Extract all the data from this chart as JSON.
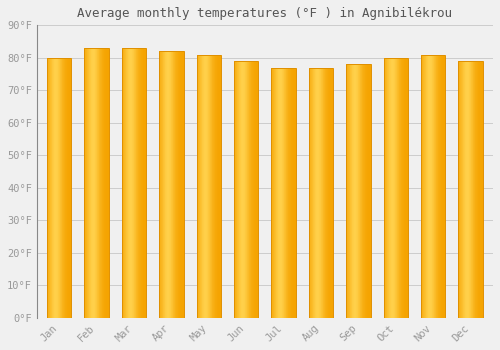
{
  "title": "Average monthly temperatures (°F ) in Agnibilékrou",
  "months": [
    "Jan",
    "Feb",
    "Mar",
    "Apr",
    "May",
    "Jun",
    "Jul",
    "Aug",
    "Sep",
    "Oct",
    "Nov",
    "Dec"
  ],
  "values": [
    80,
    83,
    83,
    82,
    81,
    79,
    77,
    77,
    78,
    80,
    81,
    79
  ],
  "bar_color_center": "#FFD04A",
  "bar_color_edge": "#F5A300",
  "bar_edge_color": "#E09000",
  "background_color": "#F0F0F0",
  "grid_color": "#CCCCCC",
  "text_color": "#999999",
  "title_color": "#555555",
  "ylim": [
    0,
    90
  ],
  "yticks": [
    0,
    10,
    20,
    30,
    40,
    50,
    60,
    70,
    80,
    90
  ],
  "ytick_labels": [
    "0°F",
    "10°F",
    "20°F",
    "30°F",
    "40°F",
    "50°F",
    "60°F",
    "70°F",
    "80°F",
    "90°F"
  ],
  "title_fontsize": 9,
  "tick_fontsize": 7.5,
  "bar_width": 0.65
}
